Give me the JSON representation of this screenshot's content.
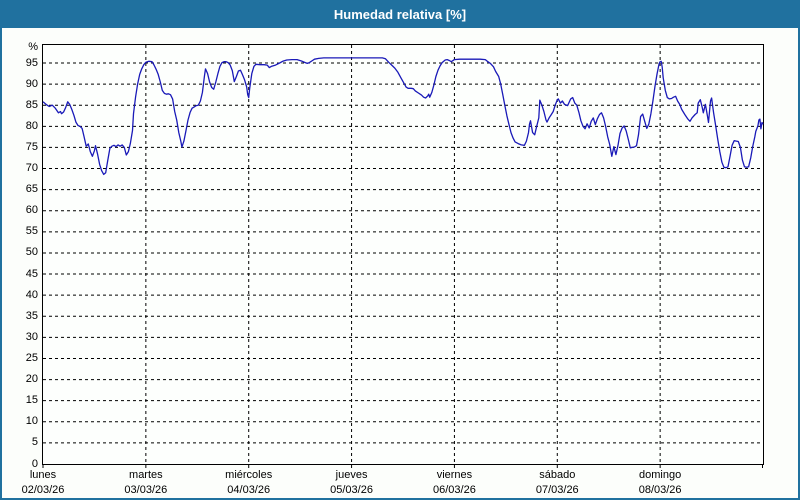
{
  "window": {
    "title": "Humedad relativa [%]"
  },
  "colors": {
    "titlebar_bg": "#20719f",
    "frame_border": "#20719f",
    "outer_bg": "#fcfefb",
    "plot_bg": "#fdfffd",
    "plot_border": "#000000",
    "grid": "#000000",
    "line": "#1a1ab8",
    "label_text": "#000000",
    "title_text": "#ffffff"
  },
  "chart_data": {
    "type": "line",
    "title": "Humedad relativa [%]",
    "ylabel": "%",
    "ylim": [
      0,
      99.3
    ],
    "yticks": [
      0,
      5,
      10,
      15,
      20,
      25,
      30,
      35,
      40,
      45,
      50,
      55,
      60,
      65,
      70,
      75,
      80,
      85,
      90,
      95
    ],
    "grid": "dashed",
    "legend": "none",
    "x_range_days": [
      0,
      7
    ],
    "x_categories": [
      {
        "name": "lunes",
        "date": "02/03/26"
      },
      {
        "name": "martes",
        "date": "03/03/26"
      },
      {
        "name": "miércoles",
        "date": "04/03/26"
      },
      {
        "name": "jueves",
        "date": "05/03/26"
      },
      {
        "name": "viernes",
        "date": "06/03/26"
      },
      {
        "name": "sábado",
        "date": "07/03/26"
      },
      {
        "name": "domingo",
        "date": "08/03/26"
      }
    ],
    "series": [
      {
        "name": "Humedad relativa",
        "color": "#1a1ab8",
        "points": [
          [
            0,
            85.8
          ],
          [
            0.03,
            85.2
          ],
          [
            0.06,
            84.7
          ],
          [
            0.09,
            85.0
          ],
          [
            0.12,
            84.3
          ],
          [
            0.15,
            83.2
          ],
          [
            0.17,
            83.5
          ],
          [
            0.18,
            83.0
          ],
          [
            0.2,
            83.4
          ],
          [
            0.22,
            84.4
          ],
          [
            0.24,
            85.8
          ],
          [
            0.26,
            85.2
          ],
          [
            0.28,
            84.0
          ],
          [
            0.3,
            82.6
          ],
          [
            0.32,
            81.0
          ],
          [
            0.34,
            80.2
          ],
          [
            0.36,
            80.0
          ],
          [
            0.38,
            79.5
          ],
          [
            0.4,
            77.5
          ],
          [
            0.42,
            75.3
          ],
          [
            0.44,
            75.8
          ],
          [
            0.46,
            74.0
          ],
          [
            0.48,
            72.9
          ],
          [
            0.5,
            74.2
          ],
          [
            0.51,
            75.4
          ],
          [
            0.53,
            73.5
          ],
          [
            0.55,
            71.0
          ],
          [
            0.57,
            69.5
          ],
          [
            0.59,
            68.6
          ],
          [
            0.61,
            69.0
          ],
          [
            0.63,
            72.0
          ],
          [
            0.65,
            74.8
          ],
          [
            0.67,
            75.3
          ],
          [
            0.69,
            75.5
          ],
          [
            0.71,
            75.2
          ],
          [
            0.73,
            75.6
          ],
          [
            0.75,
            75.3
          ],
          [
            0.77,
            75.6
          ],
          [
            0.79,
            75.0
          ],
          [
            0.81,
            73.2
          ],
          [
            0.83,
            74.0
          ],
          [
            0.85,
            76.0
          ],
          [
            0.87,
            79.0
          ],
          [
            0.88,
            83.0
          ],
          [
            0.9,
            87.0
          ],
          [
            0.92,
            90.0
          ],
          [
            0.94,
            92.3
          ],
          [
            0.96,
            93.6
          ],
          [
            0.98,
            94.6
          ],
          [
            1,
            95.2
          ],
          [
            1.03,
            95.4
          ],
          [
            1.06,
            95.3
          ],
          [
            1.08,
            94.5
          ],
          [
            1.1,
            93.5
          ],
          [
            1.12,
            92.3
          ],
          [
            1.14,
            90.5
          ],
          [
            1.16,
            88.5
          ],
          [
            1.18,
            87.8
          ],
          [
            1.2,
            87.6
          ],
          [
            1.22,
            87.7
          ],
          [
            1.24,
            87.5
          ],
          [
            1.26,
            86.5
          ],
          [
            1.28,
            83.5
          ],
          [
            1.3,
            81.5
          ],
          [
            1.32,
            78.5
          ],
          [
            1.34,
            76.5
          ],
          [
            1.35,
            75.1
          ],
          [
            1.37,
            76.5
          ],
          [
            1.39,
            79.0
          ],
          [
            1.41,
            81.5
          ],
          [
            1.43,
            83.3
          ],
          [
            1.45,
            84.3
          ],
          [
            1.47,
            84.6
          ],
          [
            1.49,
            84.9
          ],
          [
            1.51,
            85.0
          ],
          [
            1.53,
            86.0
          ],
          [
            1.55,
            88.0
          ],
          [
            1.57,
            92.0
          ],
          [
            1.58,
            93.6
          ],
          [
            1.6,
            92.5
          ],
          [
            1.62,
            90.5
          ],
          [
            1.64,
            89.2
          ],
          [
            1.66,
            88.8
          ],
          [
            1.68,
            90.5
          ],
          [
            1.7,
            92.5
          ],
          [
            1.72,
            94.2
          ],
          [
            1.74,
            95.1
          ],
          [
            1.76,
            95.3
          ],
          [
            1.78,
            95.3
          ],
          [
            1.8,
            95.1
          ],
          [
            1.82,
            94.5
          ],
          [
            1.84,
            93.2
          ],
          [
            1.86,
            90.6
          ],
          [
            1.88,
            91.8
          ],
          [
            1.9,
            93.1
          ],
          [
            1.92,
            93.3
          ],
          [
            1.94,
            92.2
          ],
          [
            1.96,
            91.0
          ],
          [
            1.98,
            89.3
          ],
          [
            1.99,
            87.5
          ],
          [
            2,
            86.8
          ],
          [
            2.01,
            89.0
          ],
          [
            2.03,
            92.5
          ],
          [
            2.05,
            94.2
          ],
          [
            2.07,
            94.7
          ],
          [
            2.11,
            94.6
          ],
          [
            2.15,
            94.6
          ],
          [
            2.18,
            94.5
          ],
          [
            2.2,
            93.9
          ],
          [
            2.22,
            94.2
          ],
          [
            2.26,
            94.5
          ],
          [
            2.3,
            95.0
          ],
          [
            2.33,
            95.4
          ],
          [
            2.37,
            95.7
          ],
          [
            2.42,
            95.8
          ],
          [
            2.47,
            95.8
          ],
          [
            2.52,
            95.4
          ],
          [
            2.55,
            95.1
          ],
          [
            2.57,
            94.9
          ],
          [
            2.59,
            95.1
          ],
          [
            2.62,
            95.6
          ],
          [
            2.64,
            95.9
          ],
          [
            2.68,
            96.1
          ],
          [
            2.73,
            96.2
          ],
          [
            2.81,
            96.2
          ],
          [
            2.9,
            96.2
          ],
          [
            3,
            96.2
          ],
          [
            3.1,
            96.2
          ],
          [
            3.2,
            96.2
          ],
          [
            3.3,
            96.2
          ],
          [
            3.33,
            96.0
          ],
          [
            3.36,
            95.2
          ],
          [
            3.39,
            94.5
          ],
          [
            3.42,
            93.8
          ],
          [
            3.45,
            92.8
          ],
          [
            3.48,
            91.5
          ],
          [
            3.51,
            90.2
          ],
          [
            3.53,
            89.3
          ],
          [
            3.55,
            89.0
          ],
          [
            3.58,
            89.0
          ],
          [
            3.6,
            88.9
          ],
          [
            3.62,
            88.4
          ],
          [
            3.65,
            87.9
          ],
          [
            3.68,
            87.4
          ],
          [
            3.7,
            86.9
          ],
          [
            3.72,
            86.7
          ],
          [
            3.74,
            87.2
          ],
          [
            3.75,
            87.6
          ],
          [
            3.76,
            86.9
          ],
          [
            3.78,
            88.0
          ],
          [
            3.8,
            89.8
          ],
          [
            3.82,
            91.8
          ],
          [
            3.84,
            93.3
          ],
          [
            3.86,
            94.3
          ],
          [
            3.88,
            95.1
          ],
          [
            3.91,
            95.7
          ],
          [
            3.93,
            95.8
          ],
          [
            3.95,
            95.6
          ],
          [
            3.97,
            95.3
          ],
          [
            3.98,
            95.5
          ],
          [
            4,
            95.8
          ],
          [
            4.05,
            95.9
          ],
          [
            4.15,
            95.9
          ],
          [
            4.25,
            95.9
          ],
          [
            4.3,
            95.8
          ],
          [
            4.32,
            95.4
          ],
          [
            4.35,
            94.9
          ],
          [
            4.38,
            94.1
          ],
          [
            4.4,
            93.0
          ],
          [
            4.43,
            91.8
          ],
          [
            4.45,
            90.0
          ],
          [
            4.47,
            87.5
          ],
          [
            4.49,
            85.0
          ],
          [
            4.51,
            82.5
          ],
          [
            4.53,
            80.5
          ],
          [
            4.55,
            78.5
          ],
          [
            4.57,
            77.2
          ],
          [
            4.59,
            76.3
          ],
          [
            4.62,
            75.9
          ],
          [
            4.65,
            75.6
          ],
          [
            4.68,
            75.5
          ],
          [
            4.7,
            76.5
          ],
          [
            4.72,
            78.5
          ],
          [
            4.73,
            80.5
          ],
          [
            4.74,
            81.3
          ],
          [
            4.76,
            78.5
          ],
          [
            4.78,
            78.0
          ],
          [
            4.8,
            80.0
          ],
          [
            4.82,
            82.0
          ],
          [
            4.83,
            86.2
          ],
          [
            4.85,
            85.0
          ],
          [
            4.87,
            83.5
          ],
          [
            4.89,
            81.5
          ],
          [
            4.9,
            81.0
          ],
          [
            4.92,
            82.0
          ],
          [
            4.94,
            82.7
          ],
          [
            4.96,
            83.5
          ],
          [
            4.98,
            85.0
          ],
          [
            5,
            86.3
          ],
          [
            5.01,
            86.5
          ],
          [
            5.03,
            85.5
          ],
          [
            5.05,
            86.0
          ],
          [
            5.07,
            85.2
          ],
          [
            5.1,
            84.9
          ],
          [
            5.13,
            86.5
          ],
          [
            5.15,
            86.8
          ],
          [
            5.17,
            85.5
          ],
          [
            5.19,
            85.0
          ],
          [
            5.21,
            83.3
          ],
          [
            5.23,
            81.3
          ],
          [
            5.25,
            80.0
          ],
          [
            5.27,
            79.4
          ],
          [
            5.29,
            80.6
          ],
          [
            5.31,
            79.6
          ],
          [
            5.33,
            81.2
          ],
          [
            5.35,
            82.0
          ],
          [
            5.37,
            80.4
          ],
          [
            5.39,
            81.8
          ],
          [
            5.41,
            82.8
          ],
          [
            5.43,
            83.2
          ],
          [
            5.45,
            82.0
          ],
          [
            5.47,
            80.0
          ],
          [
            5.49,
            77.5
          ],
          [
            5.51,
            75.7
          ],
          [
            5.53,
            72.9
          ],
          [
            5.55,
            75.2
          ],
          [
            5.57,
            73.3
          ],
          [
            5.59,
            75.5
          ],
          [
            5.61,
            78.3
          ],
          [
            5.63,
            79.6
          ],
          [
            5.65,
            80.1
          ],
          [
            5.67,
            78.9
          ],
          [
            5.69,
            76.9
          ],
          [
            5.71,
            74.9
          ],
          [
            5.73,
            75.0
          ],
          [
            5.75,
            75.1
          ],
          [
            5.77,
            75.4
          ],
          [
            5.79,
            78.0
          ],
          [
            5.81,
            82.3
          ],
          [
            5.83,
            82.9
          ],
          [
            5.85,
            81.2
          ],
          [
            5.87,
            79.5
          ],
          [
            5.89,
            80.5
          ],
          [
            5.91,
            83.0
          ],
          [
            5.93,
            86.0
          ],
          [
            5.95,
            89.5
          ],
          [
            5.97,
            92.5
          ],
          [
            5.99,
            94.8
          ],
          [
            6,
            95.3
          ],
          [
            6.01,
            95.4
          ],
          [
            6.02,
            94.0
          ],
          [
            6.03,
            91.5
          ],
          [
            6.05,
            88.5
          ],
          [
            6.07,
            86.8
          ],
          [
            6.09,
            86.5
          ],
          [
            6.11,
            86.6
          ],
          [
            6.13,
            86.9
          ],
          [
            6.15,
            87.1
          ],
          [
            6.17,
            86.0
          ],
          [
            6.19,
            85.2
          ],
          [
            6.21,
            84.0
          ],
          [
            6.24,
            82.8
          ],
          [
            6.27,
            81.7
          ],
          [
            6.29,
            81.2
          ],
          [
            6.31,
            82.0
          ],
          [
            6.34,
            82.8
          ],
          [
            6.36,
            83.2
          ],
          [
            6.37,
            85.5
          ],
          [
            6.39,
            86.3
          ],
          [
            6.41,
            84.4
          ],
          [
            6.42,
            83.2
          ],
          [
            6.44,
            85.2
          ],
          [
            6.46,
            82.4
          ],
          [
            6.47,
            80.9
          ],
          [
            6.49,
            86.0
          ],
          [
            6.5,
            86.7
          ],
          [
            6.52,
            83.2
          ],
          [
            6.54,
            80.1
          ],
          [
            6.56,
            77.0
          ],
          [
            6.58,
            74.0
          ],
          [
            6.6,
            71.5
          ],
          [
            6.62,
            70.3
          ],
          [
            6.64,
            70.2
          ],
          [
            6.66,
            70.4
          ],
          [
            6.68,
            73.0
          ],
          [
            6.7,
            75.5
          ],
          [
            6.72,
            76.6
          ],
          [
            6.74,
            76.5
          ],
          [
            6.76,
            76.4
          ],
          [
            6.78,
            75.0
          ],
          [
            6.8,
            72.0
          ],
          [
            6.82,
            70.4
          ],
          [
            6.84,
            70.3
          ],
          [
            6.86,
            70.4
          ],
          [
            6.88,
            72.5
          ],
          [
            6.9,
            75.2
          ],
          [
            6.92,
            77.5
          ],
          [
            6.93,
            78.8
          ],
          [
            6.95,
            80.1
          ],
          [
            6.96,
            81.5
          ],
          [
            6.97,
            81.7
          ],
          [
            6.98,
            79.4
          ],
          [
            6.99,
            80.9
          ],
          [
            7,
            80.5
          ]
        ]
      }
    ]
  }
}
